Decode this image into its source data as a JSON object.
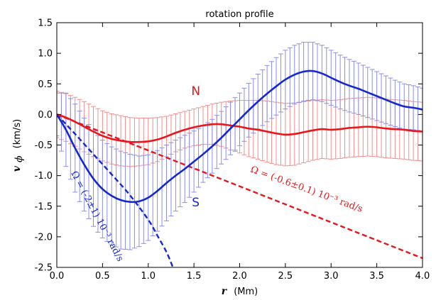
{
  "chart_data": {
    "type": "line",
    "title": "rotation profile",
    "xlabel": "r",
    "xunit": "(Mm)",
    "ylabel": "v",
    "ysubscript": "ϕ",
    "yunit": "(km/s)",
    "xlim": [
      0.0,
      4.0
    ],
    "ylim": [
      -2.5,
      1.5
    ],
    "xticks": [
      0.0,
      0.5,
      1.0,
      1.5,
      2.0,
      2.5,
      3.0,
      3.5,
      4.0
    ],
    "xtick_labels": [
      "0.0",
      "0.5",
      "1.0",
      "1.5",
      "2.0",
      "2.5",
      "3.0",
      "3.5",
      "4.0"
    ],
    "yticks": [
      1.5,
      1.0,
      0.5,
      0.0,
      -0.5,
      -1.0,
      -1.5,
      -2.0,
      -2.5
    ],
    "ytick_labels": [
      "1.5",
      "1.0",
      "0.5",
      "0.0",
      "-0.5",
      "-1.0",
      "-1.5",
      "-2.0",
      "-2.5"
    ],
    "grid": false,
    "series": [
      {
        "name": "N",
        "color": "#e8161b",
        "errcolor": "#f08f8f",
        "x": [
          0.0,
          0.1,
          0.2,
          0.3,
          0.4,
          0.5,
          0.6,
          0.7,
          0.8,
          0.9,
          1.0,
          1.1,
          1.2,
          1.3,
          1.4,
          1.5,
          1.6,
          1.7,
          1.8,
          1.9,
          2.0,
          2.1,
          2.2,
          2.3,
          2.4,
          2.5,
          2.6,
          2.7,
          2.8,
          2.9,
          3.0,
          3.1,
          3.2,
          3.3,
          3.4,
          3.5,
          3.6,
          3.7,
          3.8,
          3.9,
          4.0
        ],
        "y": [
          0.0,
          -0.05,
          -0.12,
          -0.2,
          -0.28,
          -0.35,
          -0.4,
          -0.43,
          -0.45,
          -0.45,
          -0.44,
          -0.41,
          -0.36,
          -0.3,
          -0.25,
          -0.21,
          -0.18,
          -0.16,
          -0.16,
          -0.18,
          -0.2,
          -0.23,
          -0.25,
          -0.28,
          -0.31,
          -0.33,
          -0.32,
          -0.29,
          -0.26,
          -0.24,
          -0.25,
          -0.24,
          -0.22,
          -0.21,
          -0.2,
          -0.21,
          -0.23,
          -0.24,
          -0.25,
          -0.27,
          -0.28
        ],
        "err": [
          0.38,
          0.39,
          0.4,
          0.41,
          0.41,
          0.41,
          0.41,
          0.41,
          0.4,
          0.39,
          0.38,
          0.36,
          0.33,
          0.31,
          0.3,
          0.3,
          0.31,
          0.33,
          0.36,
          0.4,
          0.43,
          0.46,
          0.48,
          0.5,
          0.51,
          0.51,
          0.51,
          0.5,
          0.49,
          0.48,
          0.48,
          0.48,
          0.48,
          0.48,
          0.48,
          0.48,
          0.48,
          0.48,
          0.48,
          0.48,
          0.48
        ]
      },
      {
        "name": "S",
        "color": "#1428d2",
        "errcolor": "#8a8ee8",
        "x": [
          0.0,
          0.1,
          0.2,
          0.3,
          0.4,
          0.5,
          0.6,
          0.7,
          0.8,
          0.9,
          1.0,
          1.1,
          1.2,
          1.3,
          1.4,
          1.5,
          1.6,
          1.7,
          1.8,
          1.9,
          2.0,
          2.1,
          2.2,
          2.3,
          2.4,
          2.5,
          2.6,
          2.7,
          2.8,
          2.9,
          3.0,
          3.1,
          3.2,
          3.3,
          3.4,
          3.5,
          3.6,
          3.7,
          3.8,
          3.9,
          4.0
        ],
        "y": [
          0.0,
          -0.25,
          -0.55,
          -0.82,
          -1.05,
          -1.22,
          -1.33,
          -1.4,
          -1.43,
          -1.42,
          -1.36,
          -1.25,
          -1.12,
          -1.0,
          -0.89,
          -0.77,
          -0.65,
          -0.52,
          -0.38,
          -0.23,
          -0.08,
          0.07,
          0.21,
          0.34,
          0.46,
          0.57,
          0.65,
          0.7,
          0.71,
          0.67,
          0.6,
          0.53,
          0.47,
          0.42,
          0.36,
          0.3,
          0.24,
          0.18,
          0.13,
          0.11,
          0.08
        ],
        "err": [
          0.35,
          0.6,
          0.72,
          0.76,
          0.78,
          0.8,
          0.8,
          0.8,
          0.78,
          0.74,
          0.7,
          0.66,
          0.62,
          0.58,
          0.55,
          0.5,
          0.46,
          0.44,
          0.43,
          0.43,
          0.43,
          0.44,
          0.45,
          0.46,
          0.47,
          0.48,
          0.48,
          0.48,
          0.47,
          0.46,
          0.45,
          0.44,
          0.43,
          0.42,
          0.41,
          0.4,
          0.39,
          0.38,
          0.37,
          0.36,
          0.35
        ]
      }
    ],
    "fits": [
      {
        "label": "Ω = (-0.6±0.1) 10⁻³ rad/s",
        "color": "#e8161b",
        "x": [
          0.0,
          4.0
        ],
        "y": [
          0.0,
          -2.35
        ]
      },
      {
        "label": "Ω = (-2±1) 10⁻³ rad/s",
        "color": "#1428d2",
        "x": [
          0.0,
          0.2,
          0.4,
          0.6,
          0.8,
          1.0,
          1.1,
          1.2,
          1.27
        ],
        "y": [
          0.0,
          -0.32,
          -0.65,
          -0.98,
          -1.32,
          -1.72,
          -1.98,
          -2.25,
          -2.5
        ]
      }
    ],
    "annotations": [
      {
        "text": "N",
        "color": "#e8161b",
        "x": 1.52,
        "y": 0.32
      },
      {
        "text": "S",
        "color": "#1428d2",
        "x": 1.52,
        "y": -1.5
      }
    ]
  }
}
